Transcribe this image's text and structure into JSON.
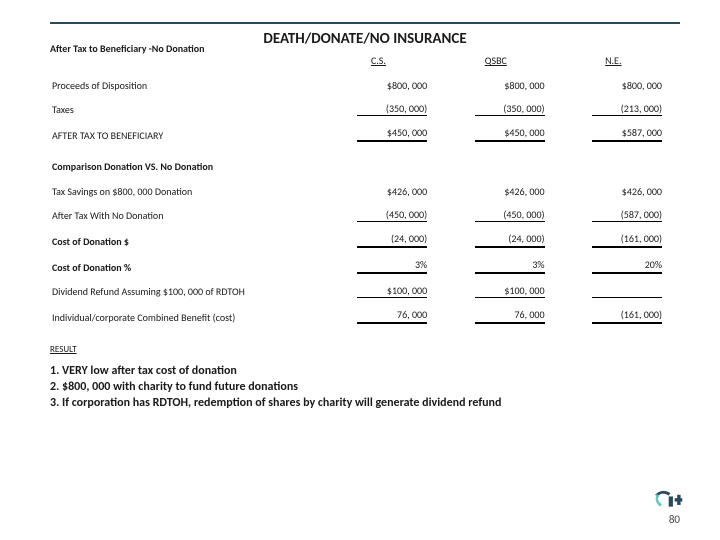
{
  "title": "DEATH/DONATE/NO INSURANCE",
  "subtitle": "After Tax to Beneficiary -No Donation",
  "columns": [
    "C.S.",
    "QSBC",
    "N.E."
  ],
  "section1": [
    {
      "label": "Proceeds of Disposition",
      "vals": [
        "$800, 000",
        "$800, 000",
        "$800, 000"
      ],
      "style": "plain",
      "labelBold": false
    },
    {
      "label": "Taxes",
      "vals": [
        "(350, 000)",
        "(350, 000)",
        "(213, 000)"
      ],
      "style": "ul-thin",
      "labelBold": false
    },
    {
      "label": "AFTER TAX TO BENEFICIARY",
      "vals": [
        "$450, 000",
        "$450, 000",
        "$587, 000"
      ],
      "style": "ul-thick",
      "labelBold": false
    }
  ],
  "section2_head": "Comparison Donation VS. No Donation",
  "section2": [
    {
      "label": "Tax Savings on $800, 000 Donation",
      "vals": [
        "$426, 000",
        "$426, 000",
        "$426, 000"
      ],
      "style": "plain",
      "labelBold": false
    },
    {
      "label": "After Tax With No Donation",
      "vals": [
        "(450, 000)",
        "(450, 000)",
        "(587, 000)"
      ],
      "style": "ul-thin",
      "labelBold": false
    },
    {
      "label": "Cost of Donation $",
      "vals": [
        "(24, 000)",
        "(24, 000)",
        "(161, 000)"
      ],
      "style": "ul-thick",
      "labelBold": true
    },
    {
      "label": "Cost of Donation %",
      "vals": [
        "3%",
        "3%",
        "20%"
      ],
      "style": "ul-thick",
      "labelBold": true
    },
    {
      "label": "Dividend Refund Assuming $100, 000 of RDTOH",
      "vals": [
        "$100, 000",
        "$100, 000",
        ""
      ],
      "style": "ul-thin",
      "labelBold": false
    },
    {
      "label": "Individual/corporate Combined Benefit (cost)",
      "vals": [
        "76, 000",
        "76, 000",
        "(161, 000)"
      ],
      "style": "ul-thick",
      "labelBold": false
    }
  ],
  "result_head": "RESULT",
  "results": [
    "1. VERY low after tax cost of donation",
    "2. $800, 000 with charity to fund future donations",
    "3. If corporation has RDTOH, redemption of shares by charity will generate dividend refund"
  ],
  "page_number": "80",
  "accent_color": "#2a4a5c"
}
